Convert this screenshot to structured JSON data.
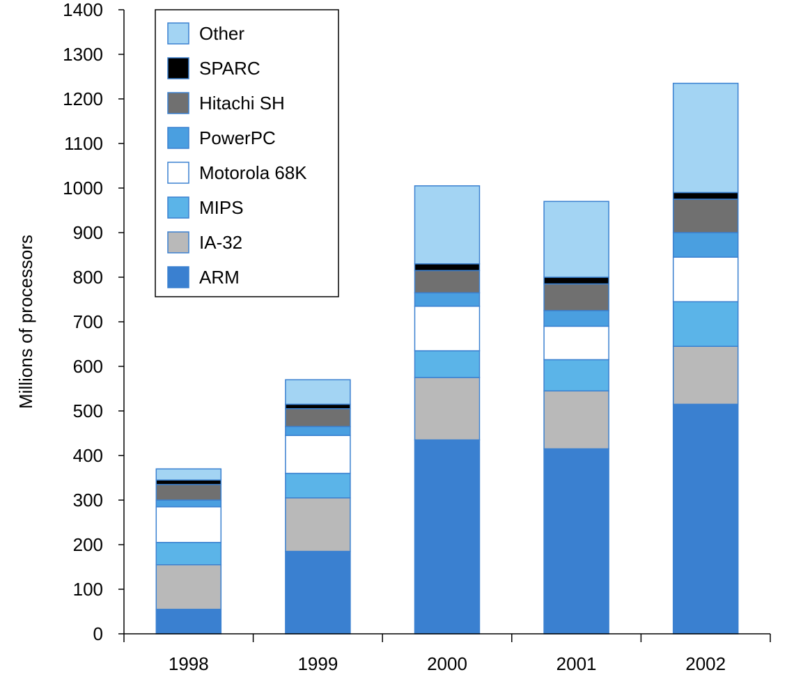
{
  "chart_data": {
    "type": "bar",
    "stacked": true,
    "title": "",
    "xlabel": "",
    "ylabel": "Millions of processors",
    "ylim": [
      0,
      1400
    ],
    "yticks": [
      0,
      100,
      200,
      300,
      400,
      500,
      600,
      700,
      800,
      900,
      1000,
      1100,
      1200,
      1300,
      1400
    ],
    "categories": [
      "1998",
      "1999",
      "2000",
      "2001",
      "2002"
    ],
    "legend_position": "top-left",
    "series": [
      {
        "name": "ARM",
        "color": "#3a80d0",
        "values": [
          55,
          185,
          435,
          415,
          515
        ]
      },
      {
        "name": "IA-32",
        "color": "#b9b9b9",
        "values": [
          100,
          120,
          140,
          130,
          130
        ]
      },
      {
        "name": "MIPS",
        "color": "#5bb4e8",
        "values": [
          50,
          55,
          60,
          70,
          100
        ]
      },
      {
        "name": "Motorola 68K",
        "color": "#ffffff",
        "values": [
          80,
          85,
          100,
          75,
          100
        ]
      },
      {
        "name": "PowerPC",
        "color": "#4a9fe0",
        "values": [
          15,
          20,
          30,
          35,
          55
        ]
      },
      {
        "name": "Hitachi SH",
        "color": "#707070",
        "values": [
          35,
          40,
          50,
          60,
          75
        ]
      },
      {
        "name": "SPARC",
        "color": "#000000",
        "values": [
          10,
          10,
          15,
          15,
          15
        ]
      },
      {
        "name": "Other",
        "color": "#a3d4f3",
        "values": [
          25,
          55,
          175,
          170,
          245
        ]
      }
    ],
    "legend_order": [
      "Other",
      "SPARC",
      "Hitachi SH",
      "PowerPC",
      "Motorola 68K",
      "MIPS",
      "IA-32",
      "ARM"
    ]
  }
}
